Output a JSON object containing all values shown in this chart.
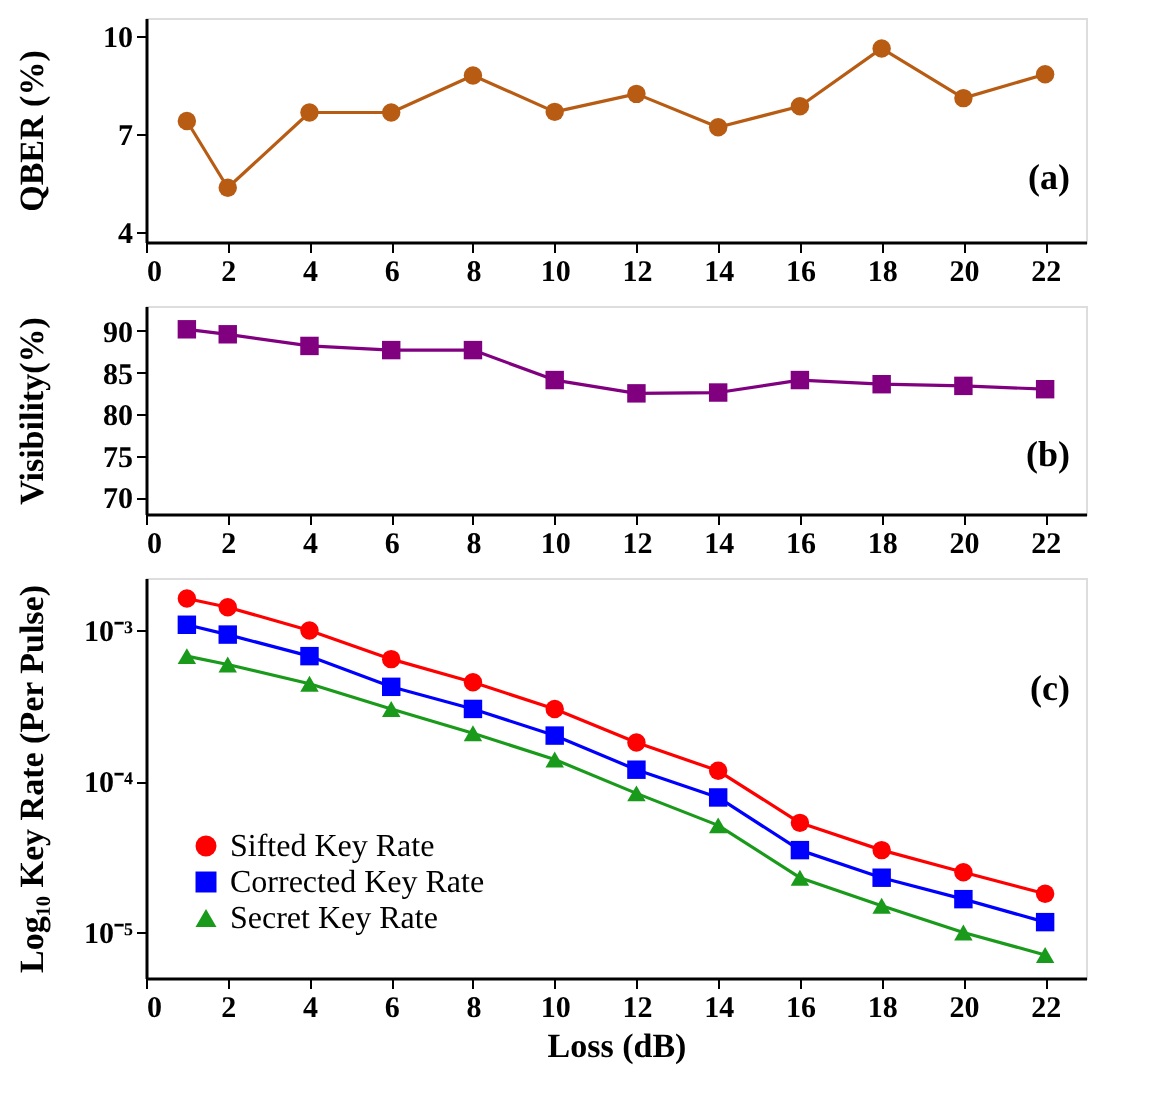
{
  "chart_data": [
    {
      "type": "line",
      "ylabel": "QBER (%)",
      "annotations": [
        "(a)"
      ],
      "x": [
        1,
        2,
        4,
        6,
        8,
        10,
        12,
        14,
        16,
        18,
        20,
        22
      ],
      "xlim": [
        0,
        23
      ],
      "xticks": [
        0,
        2,
        4,
        6,
        8,
        10,
        12,
        14,
        16,
        18,
        20,
        22
      ],
      "ylim": [
        3.7,
        10.55
      ],
      "yticks": [
        4,
        7,
        10
      ],
      "marker": "circle",
      "grid": false,
      "legend": false,
      "series": [
        {
          "color": "#b85c14",
          "values": [
            7.4,
            5.36,
            7.66,
            7.66,
            8.79,
            7.68,
            8.23,
            7.21,
            7.85,
            9.62,
            8.1,
            8.83
          ]
        }
      ]
    },
    {
      "type": "line",
      "ylabel": "Visibility(%)",
      "annotations": [
        "(b)"
      ],
      "x": [
        1,
        2,
        4,
        6,
        8,
        10,
        12,
        14,
        16,
        18,
        20,
        22
      ],
      "xlim": [
        0,
        23
      ],
      "xticks": [
        0,
        2,
        4,
        6,
        8,
        10,
        12,
        14,
        16,
        18,
        20,
        22
      ],
      "ylim": [
        68,
        93
      ],
      "yticks": [
        70,
        75,
        80,
        85,
        90
      ],
      "marker": "square",
      "grid": false,
      "legend": false,
      "series": [
        {
          "color": "#800080",
          "values": [
            90.2,
            89.6,
            88.2,
            87.7,
            87.7,
            84.1,
            82.5,
            82.6,
            84.1,
            83.6,
            83.4,
            83.0
          ]
        }
      ]
    },
    {
      "type": "line",
      "xlabel": "Loss (dB)",
      "ylabel": "Log₁₀ Key Rate (Per Pulse)",
      "annotations": [
        "(c)"
      ],
      "x": [
        1,
        2,
        4,
        6,
        8,
        10,
        12,
        14,
        16,
        18,
        20,
        22
      ],
      "xlim": [
        0,
        23
      ],
      "xticks": [
        0,
        2,
        4,
        6,
        8,
        10,
        12,
        14,
        16,
        18,
        20,
        22
      ],
      "log": "y",
      "ylim": [
        5e-06,
        0.0022
      ],
      "yticks": [
        {
          "value": 1e-05,
          "label": "10⁻⁵"
        },
        {
          "value": 0.0001,
          "label": "10⁻⁴"
        },
        {
          "value": 0.001,
          "label": "10⁻³"
        }
      ],
      "grid": false,
      "legend": "bottom left",
      "series": [
        {
          "name": "Sifted Key Rate",
          "color": "#ff0000",
          "marker": "circle",
          "values": [
            0.00161,
            0.00141,
            0.00099,
            0.00064,
            0.00045,
            0.0003,
            0.00018,
            0.000117,
            5.3e-05,
            3.5e-05,
            2.5e-05,
            1.8e-05
          ]
        },
        {
          "name": "Corrected Key Rate",
          "color": "#0000ff",
          "marker": "square",
          "values": [
            0.00108,
            0.00093,
            0.00067,
            0.00042,
            0.0003,
            0.0002,
            0.000119,
            7.8e-05,
            3.5e-05,
            2.3e-05,
            1.66e-05,
            1.17e-05
          ]
        },
        {
          "name": "Secret Key Rate",
          "color": "#1a9a1a",
          "marker": "triangle",
          "values": [
            0.00067,
            0.00059,
            0.00044,
            0.0003,
            0.000207,
            0.000139,
            8.3e-05,
            5.1e-05,
            2.3e-05,
            1.5e-05,
            1e-05,
            7.1e-06
          ]
        }
      ]
    }
  ]
}
